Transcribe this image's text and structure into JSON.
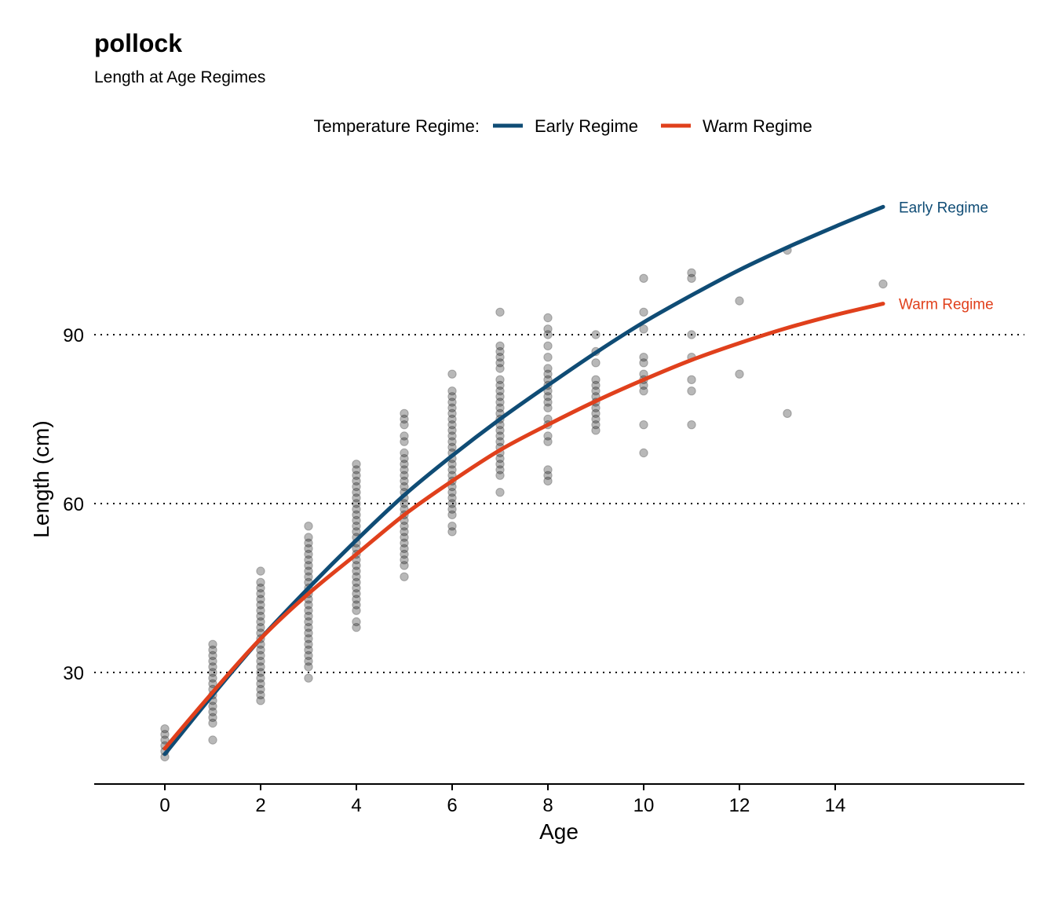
{
  "chart_data": {
    "type": "scatter",
    "title": "pollock",
    "subtitle": "Length at Age Regimes",
    "xlabel": "Age",
    "ylabel": "Length (cm)",
    "xlim": [
      -1.5,
      18
    ],
    "ylim": [
      10,
      120
    ],
    "x_ticks": [
      0,
      2,
      4,
      6,
      8,
      10,
      12,
      14
    ],
    "y_ticks": [
      30,
      60,
      90
    ],
    "grid": {
      "horizontal": true,
      "style": "dotted"
    },
    "legend": {
      "title": "Temperature Regime:",
      "placement": "top"
    },
    "points": {
      "color": "#000000",
      "opacity": 0.28,
      "by_age": [
        {
          "age": 0,
          "lengths": [
            15,
            16,
            17,
            18,
            19,
            20
          ]
        },
        {
          "age": 1,
          "lengths": [
            18,
            21,
            22,
            23,
            24,
            25,
            26,
            27,
            28,
            29,
            30,
            31,
            32,
            33,
            34,
            35
          ]
        },
        {
          "age": 2,
          "lengths": [
            25,
            26,
            27,
            28,
            29,
            30,
            31,
            32,
            33,
            34,
            35,
            36,
            37,
            38,
            39,
            40,
            41,
            42,
            43,
            44,
            45,
            46,
            48
          ]
        },
        {
          "age": 3,
          "lengths": [
            29,
            31,
            32,
            33,
            34,
            35,
            36,
            37,
            38,
            39,
            40,
            41,
            42,
            43,
            44,
            45,
            46,
            47,
            48,
            49,
            50,
            51,
            52,
            53,
            54,
            56
          ]
        },
        {
          "age": 4,
          "lengths": [
            38,
            39,
            41,
            42,
            43,
            44,
            45,
            46,
            47,
            48,
            49,
            50,
            51,
            52,
            53,
            54,
            55,
            56,
            57,
            58,
            59,
            60,
            61,
            62,
            63,
            64,
            65,
            66,
            67
          ]
        },
        {
          "age": 5,
          "lengths": [
            47,
            49,
            50,
            51,
            52,
            53,
            54,
            55,
            56,
            57,
            58,
            59,
            60,
            61,
            62,
            63,
            64,
            65,
            66,
            67,
            68,
            69,
            71,
            72,
            74,
            75,
            76
          ]
        },
        {
          "age": 6,
          "lengths": [
            55,
            56,
            58,
            59,
            60,
            61,
            62,
            63,
            64,
            65,
            66,
            67,
            68,
            69,
            70,
            71,
            72,
            73,
            74,
            75,
            76,
            77,
            78,
            79,
            80,
            83
          ]
        },
        {
          "age": 7,
          "lengths": [
            62,
            65,
            66,
            67,
            68,
            69,
            70,
            71,
            72,
            73,
            74,
            75,
            76,
            77,
            78,
            79,
            80,
            81,
            82,
            84,
            85,
            86,
            87,
            88,
            94
          ]
        },
        {
          "age": 8,
          "lengths": [
            64,
            65,
            66,
            71,
            72,
            74,
            75,
            77,
            78,
            79,
            80,
            81,
            82,
            83,
            84,
            86,
            88,
            90,
            91,
            93
          ]
        },
        {
          "age": 9,
          "lengths": [
            73,
            74,
            75,
            76,
            77,
            78,
            79,
            80,
            81,
            82,
            85,
            87,
            90
          ]
        },
        {
          "age": 10,
          "lengths": [
            69,
            74,
            80,
            81,
            82,
            83,
            85,
            86,
            91,
            94,
            100
          ]
        },
        {
          "age": 11,
          "lengths": [
            74,
            80,
            82,
            86,
            90,
            100,
            101
          ]
        },
        {
          "age": 12,
          "lengths": [
            83,
            96
          ]
        },
        {
          "age": 13,
          "lengths": [
            76,
            105
          ]
        },
        {
          "age": 15,
          "lengths": [
            99
          ]
        }
      ]
    },
    "series": [
      {
        "name": "Early Regime",
        "color": "#0f4c75",
        "x": [
          0,
          1,
          2,
          3,
          4,
          5,
          6,
          7,
          8,
          9,
          10,
          11,
          12,
          13,
          14,
          15
        ],
        "y": [
          15.5,
          26,
          36,
          45,
          53.5,
          61.5,
          68.5,
          75,
          81,
          86.8,
          92.2,
          97,
          101.5,
          105.5,
          109.2,
          112.7
        ]
      },
      {
        "name": "Warm Regime",
        "color": "#e0401c",
        "x": [
          0,
          1,
          2,
          3,
          4,
          5,
          6,
          7,
          8,
          9,
          10,
          11,
          12,
          13,
          14,
          15
        ],
        "y": [
          16.5,
          26.5,
          36,
          44,
          51,
          58,
          64,
          69.5,
          74,
          78.2,
          82,
          85.5,
          88.5,
          91.2,
          93.5,
          95.5
        ]
      }
    ]
  }
}
